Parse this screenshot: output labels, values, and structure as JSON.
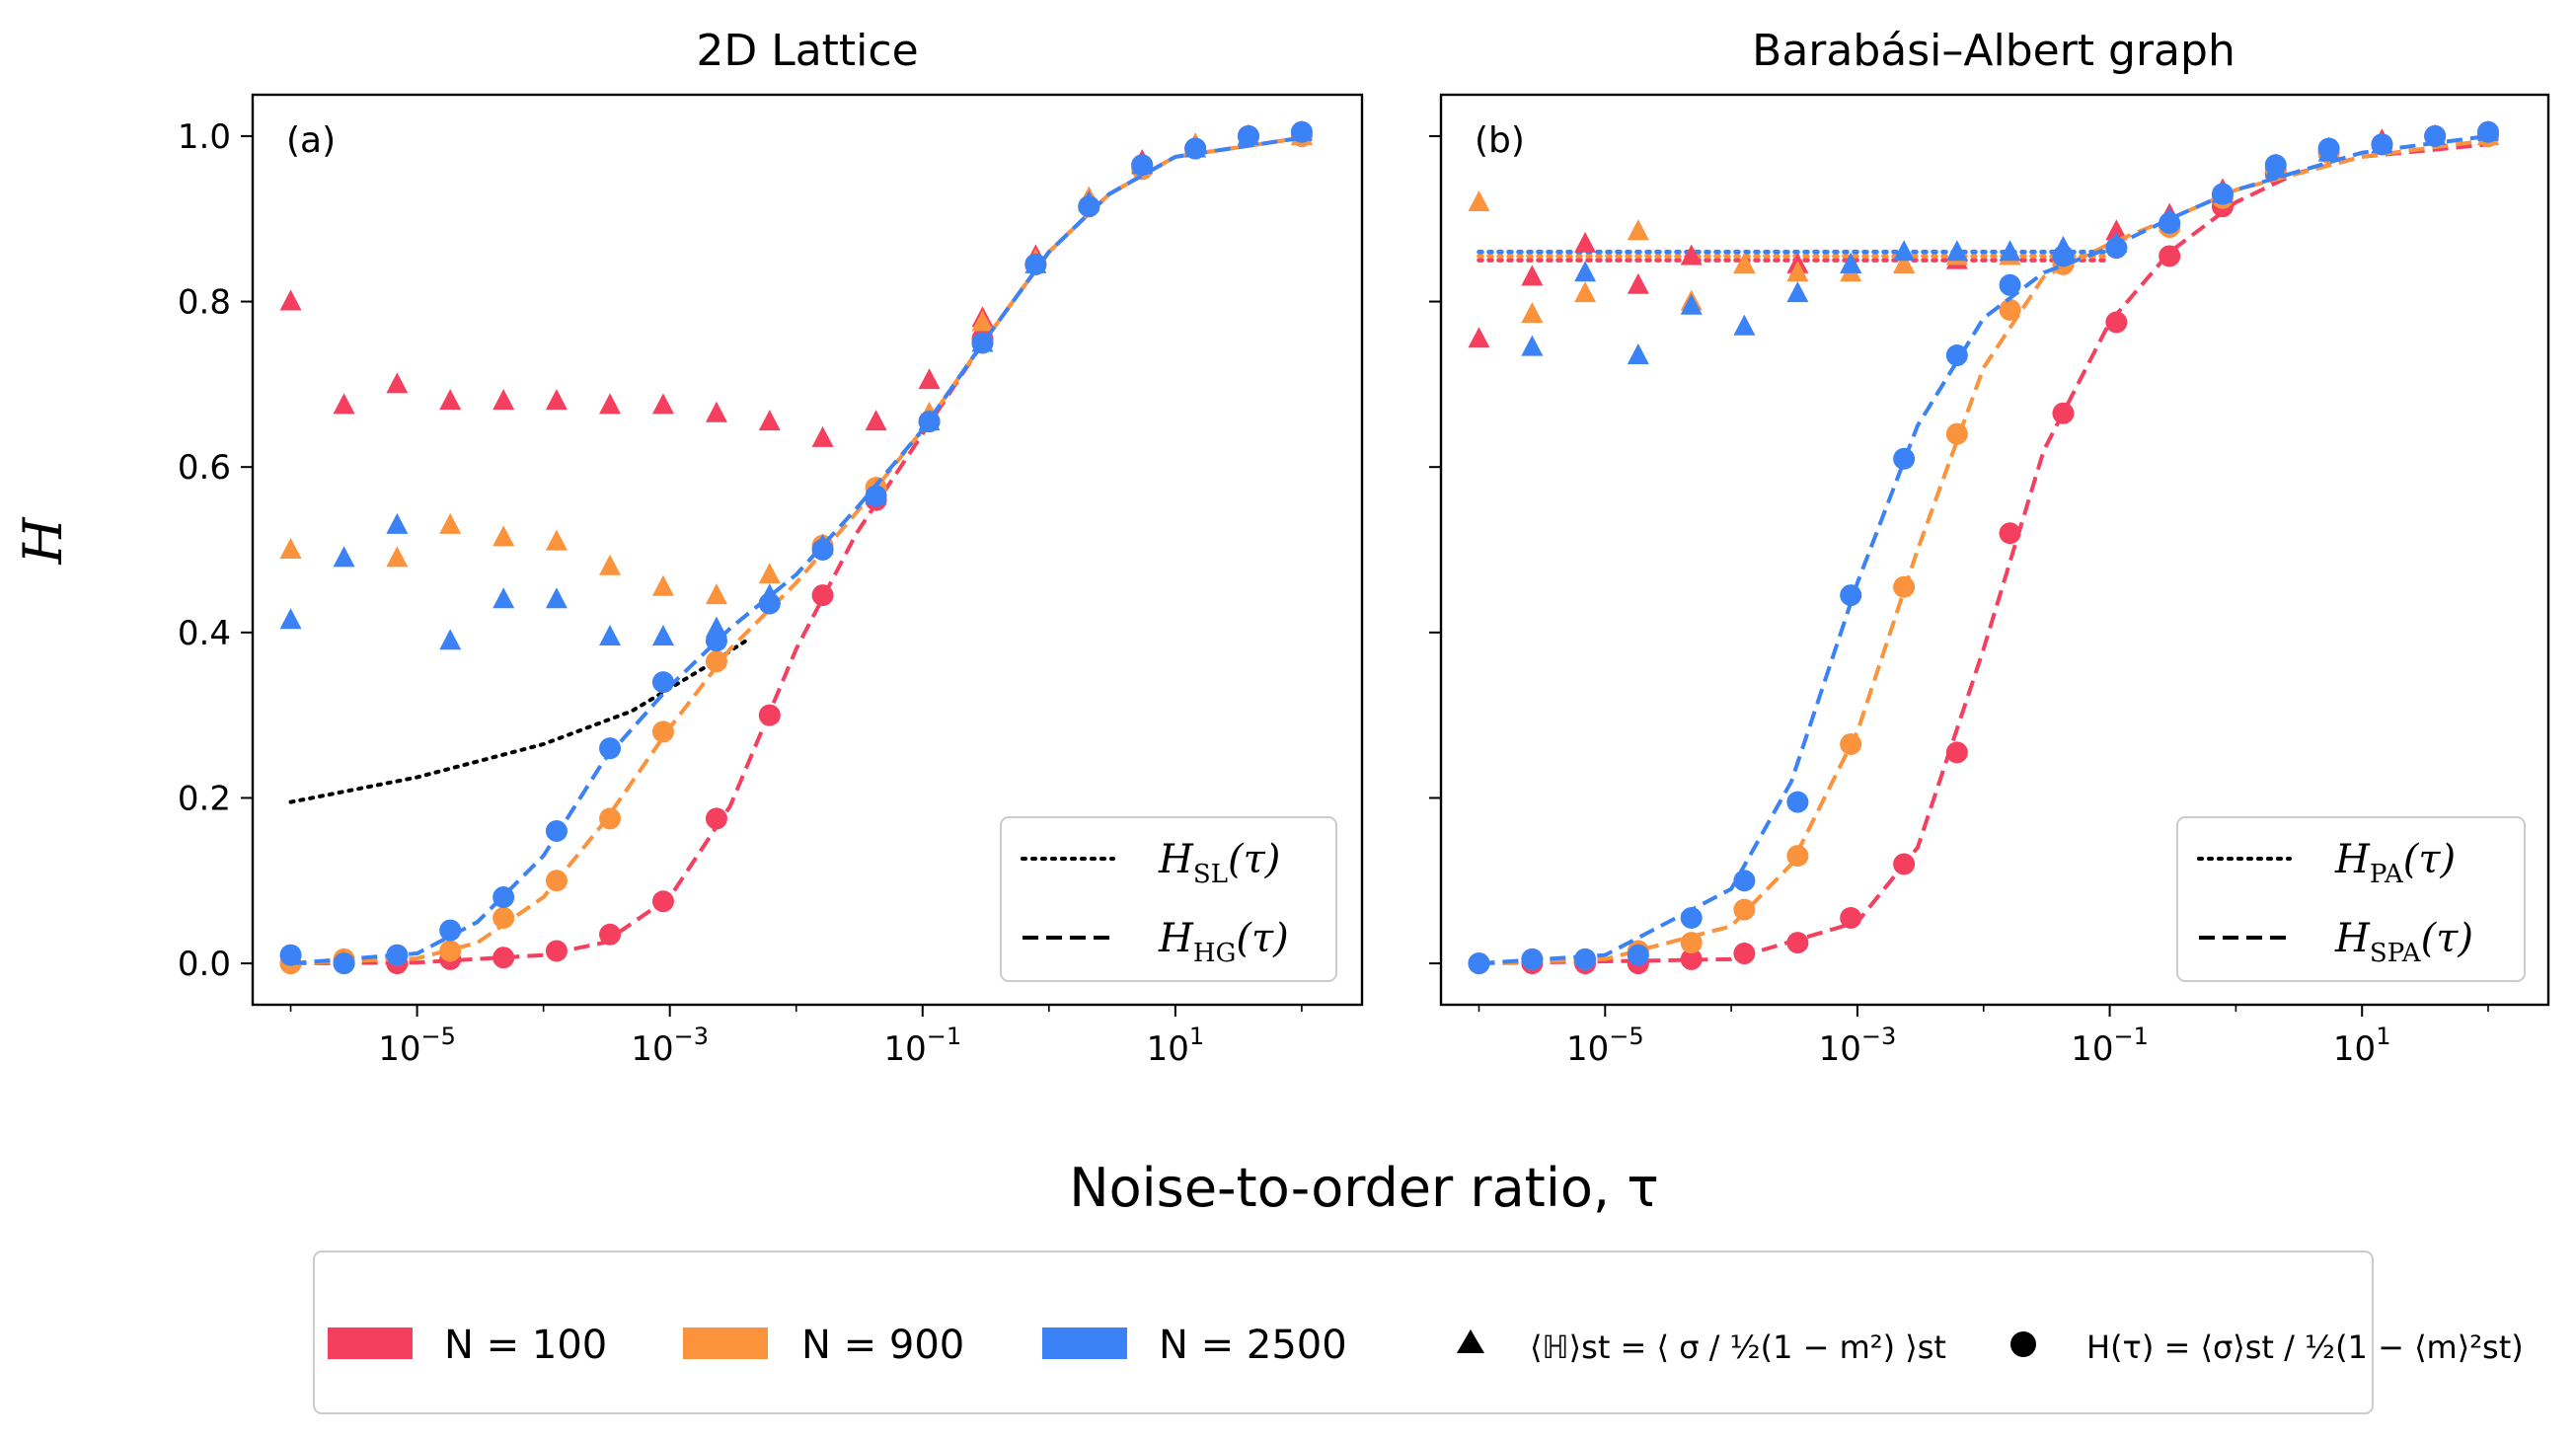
{
  "x_axis_label": "Noise-to-order ratio, τ",
  "colors": {
    "N100": "#f43f5e",
    "N900": "#fb923c",
    "N2500": "#3b82f6",
    "theory": "#000000"
  },
  "chart_data": [
    {
      "type": "scatter",
      "panel_label": "(a)",
      "title": "2D Lattice",
      "xlabel": "Noise-to-order ratio, τ",
      "ylabel": "H",
      "xscale": "log",
      "xlim": [
        5e-07,
        300
      ],
      "ylim": [
        -0.05,
        1.05
      ],
      "xticks": [
        1e-05,
        0.001,
        0.1,
        10
      ],
      "xtick_labels": [
        [
          "10",
          "−5"
        ],
        [
          "10",
          "−3"
        ],
        [
          "10",
          "−1"
        ],
        [
          "10",
          "1"
        ]
      ],
      "yticks": [
        0,
        0.2,
        0.4,
        0.6,
        0.8,
        1.0
      ],
      "ytick_labels": [
        "0.0",
        "0.2",
        "0.4",
        "0.6",
        "0.8",
        "1.0"
      ],
      "x": [
        1e-06,
        2.64e-06,
        6.95e-06,
        1.83e-05,
        4.83e-05,
        0.000127,
        0.000336,
        0.000886,
        0.00234,
        0.00616,
        0.0162,
        0.0428,
        0.113,
        0.298,
        0.785,
        2.07,
        5.46,
        14.4,
        37.9,
        100
      ],
      "series": [
        {
          "name": "N = 100",
          "color_key": "N100",
          "triangles": [
            0.8,
            0.675,
            0.7,
            0.68,
            0.68,
            0.68,
            0.675,
            0.675,
            0.665,
            0.655,
            0.635,
            0.655,
            0.705,
            0.78,
            0.855,
            0.925,
            0.97,
            0.99,
            1.0,
            1.0
          ],
          "circles": [
            0.0,
            0.0,
            0.0,
            0.005,
            0.007,
            0.015,
            0.035,
            0.075,
            0.175,
            0.3,
            0.445,
            0.56,
            0.655,
            0.755,
            0.845,
            0.915,
            0.965,
            0.985,
            1.0,
            1.0
          ],
          "dashed": [
            [
              1e-06,
              0.0
            ],
            [
              1e-05,
              0.001
            ],
            [
              0.0001,
              0.01
            ],
            [
              0.0003,
              0.025
            ],
            [
              0.001,
              0.08
            ],
            [
              0.003,
              0.19
            ],
            [
              0.01,
              0.38
            ],
            [
              0.03,
              0.52
            ],
            [
              0.1,
              0.64
            ],
            [
              0.3,
              0.75
            ],
            [
              1,
              0.86
            ],
            [
              3,
              0.93
            ],
            [
              10,
              0.975
            ],
            [
              100,
              0.998
            ]
          ]
        },
        {
          "name": "N = 900",
          "color_key": "N900",
          "triangles": [
            0.5,
            null,
            0.49,
            0.53,
            0.515,
            0.51,
            0.48,
            0.455,
            0.445,
            0.47,
            0.505,
            0.575,
            0.665,
            0.775,
            0.85,
            0.925,
            0.965,
            0.99,
            1.0,
            1.0
          ],
          "circles": [
            0.0,
            0.005,
            0.01,
            0.015,
            0.055,
            0.1,
            0.175,
            0.28,
            0.365,
            0.435,
            0.505,
            0.575,
            0.655,
            0.75,
            0.845,
            0.915,
            0.96,
            0.985,
            1.0,
            1.0
          ],
          "dashed": [
            [
              1e-06,
              0.0
            ],
            [
              1e-05,
              0.006
            ],
            [
              3e-05,
              0.025
            ],
            [
              0.0001,
              0.08
            ],
            [
              0.0003,
              0.17
            ],
            [
              0.001,
              0.285
            ],
            [
              0.003,
              0.38
            ],
            [
              0.01,
              0.46
            ],
            [
              0.03,
              0.545
            ],
            [
              0.1,
              0.645
            ],
            [
              0.3,
              0.75
            ],
            [
              1,
              0.86
            ],
            [
              3,
              0.93
            ],
            [
              10,
              0.975
            ],
            [
              100,
              0.998
            ]
          ]
        },
        {
          "name": "N = 2500",
          "color_key": "N2500",
          "triangles": [
            0.415,
            0.49,
            0.53,
            0.39,
            0.44,
            0.44,
            0.395,
            0.395,
            0.405,
            0.445,
            0.505,
            0.565,
            0.655,
            0.75,
            0.845,
            0.92,
            0.965,
            0.985,
            1.0,
            1.005
          ],
          "circles": [
            0.01,
            0.0,
            0.01,
            0.04,
            0.08,
            0.16,
            0.26,
            0.34,
            0.39,
            0.435,
            0.5,
            0.565,
            0.655,
            0.75,
            0.845,
            0.915,
            0.965,
            0.985,
            1.0,
            1.005
          ],
          "dashed": [
            [
              1e-06,
              0.0
            ],
            [
              1e-05,
              0.012
            ],
            [
              3e-05,
              0.05
            ],
            [
              0.0001,
              0.13
            ],
            [
              0.0003,
              0.245
            ],
            [
              0.001,
              0.335
            ],
            [
              0.003,
              0.405
            ],
            [
              0.01,
              0.47
            ],
            [
              0.03,
              0.55
            ],
            [
              0.1,
              0.645
            ],
            [
              0.3,
              0.75
            ],
            [
              1,
              0.86
            ],
            [
              3,
              0.93
            ],
            [
              10,
              0.975
            ],
            [
              100,
              0.998
            ]
          ]
        }
      ],
      "theory_dotted": {
        "name": "H_SL(τ)",
        "points": [
          [
            1e-06,
            0.195
          ],
          [
            1e-05,
            0.225
          ],
          [
            0.0001,
            0.265
          ],
          [
            0.0005,
            0.305
          ],
          [
            0.002,
            0.36
          ],
          [
            0.004,
            0.39
          ]
        ]
      },
      "theory_dashed_name": "H_HG(τ)",
      "legend": {
        "placement": "lower-right",
        "dotted_label": [
          "H",
          "SL",
          "(τ)"
        ],
        "dashed_label": [
          "H",
          "HG",
          "(τ)"
        ]
      }
    },
    {
      "type": "scatter",
      "panel_label": "(b)",
      "title": "Barabási–Albert graph",
      "xlabel": "Noise-to-order ratio, τ",
      "xscale": "log",
      "xlim": [
        5e-07,
        300
      ],
      "ylim": [
        -0.05,
        1.05
      ],
      "xticks": [
        1e-05,
        0.001,
        0.1,
        10
      ],
      "xtick_labels": [
        [
          "10",
          "−5"
        ],
        [
          "10",
          "−3"
        ],
        [
          "10",
          "−1"
        ],
        [
          "10",
          "1"
        ]
      ],
      "x": [
        1e-06,
        2.64e-06,
        6.95e-06,
        1.83e-05,
        4.83e-05,
        0.000127,
        0.000336,
        0.000886,
        0.00234,
        0.00616,
        0.0162,
        0.0428,
        0.113,
        0.298,
        0.785,
        2.07,
        5.46,
        14.4,
        37.9,
        100
      ],
      "series": [
        {
          "name": "N = 100",
          "color_key": "N100",
          "triangles": [
            0.755,
            0.83,
            0.87,
            0.82,
            0.855,
            0.845,
            0.845,
            0.845,
            0.845,
            0.85,
            0.855,
            0.865,
            0.885,
            0.905,
            0.935,
            0.965,
            0.985,
            0.995,
            1.0,
            1.0
          ],
          "circles": [
            0.0,
            0.0,
            0.0,
            0.0,
            0.005,
            0.012,
            0.025,
            0.055,
            0.12,
            0.255,
            0.52,
            0.665,
            0.775,
            0.855,
            0.915,
            0.955,
            0.98,
            0.99,
            1.0,
            1.0
          ],
          "dashed": [
            [
              1e-06,
              0.0
            ],
            [
              0.0001,
              0.005
            ],
            [
              0.001,
              0.05
            ],
            [
              0.003,
              0.14
            ],
            [
              0.01,
              0.38
            ],
            [
              0.03,
              0.62
            ],
            [
              0.1,
              0.775
            ],
            [
              0.3,
              0.86
            ],
            [
              1,
              0.92
            ],
            [
              3,
              0.955
            ],
            [
              10,
              0.975
            ],
            [
              100,
              0.99
            ]
          ]
        },
        {
          "name": "N = 900",
          "color_key": "N900",
          "triangles": [
            0.92,
            0.785,
            0.81,
            0.885,
            0.8,
            0.845,
            0.835,
            0.835,
            0.845,
            0.855,
            0.855,
            0.86,
            0.87,
            0.895,
            0.93,
            0.96,
            0.98,
            0.99,
            1.0,
            1.0
          ],
          "circles": [
            0.0,
            0.005,
            0.005,
            0.015,
            0.025,
            0.065,
            0.13,
            0.265,
            0.455,
            0.64,
            0.79,
            0.845,
            0.865,
            0.89,
            0.925,
            0.96,
            0.98,
            0.99,
            1.0,
            1.0
          ],
          "dashed": [
            [
              1e-06,
              0.0
            ],
            [
              1e-05,
              0.005
            ],
            [
              0.0001,
              0.045
            ],
            [
              0.0003,
              0.12
            ],
            [
              0.001,
              0.28
            ],
            [
              0.003,
              0.5
            ],
            [
              0.01,
              0.72
            ],
            [
              0.03,
              0.83
            ],
            [
              0.1,
              0.87
            ],
            [
              0.3,
              0.9
            ],
            [
              1,
              0.935
            ],
            [
              10,
              0.975
            ],
            [
              100,
              0.995
            ]
          ]
        },
        {
          "name": "N = 2500",
          "color_key": "N2500",
          "triangles": [
            null,
            0.745,
            0.835,
            0.735,
            0.795,
            0.77,
            0.81,
            0.845,
            0.86,
            0.86,
            0.86,
            0.865,
            0.87,
            0.9,
            0.93,
            0.96,
            0.98,
            0.99,
            1.0,
            1.005
          ],
          "circles": [
            0.0,
            0.005,
            0.005,
            0.01,
            0.055,
            0.1,
            0.195,
            0.445,
            0.61,
            0.735,
            0.82,
            0.855,
            0.865,
            0.895,
            0.93,
            0.965,
            0.985,
            0.99,
            1.0,
            1.005
          ],
          "dashed": [
            [
              1e-06,
              0.0
            ],
            [
              1e-05,
              0.01
            ],
            [
              0.0001,
              0.09
            ],
            [
              0.0003,
              0.22
            ],
            [
              0.001,
              0.46
            ],
            [
              0.003,
              0.65
            ],
            [
              0.01,
              0.78
            ],
            [
              0.03,
              0.835
            ],
            [
              0.1,
              0.865
            ],
            [
              0.3,
              0.9
            ],
            [
              1,
              0.935
            ],
            [
              10,
              0.98
            ],
            [
              100,
              1.0
            ]
          ]
        }
      ],
      "theory_dotted_values": {
        "N100": 0.85,
        "N900": 0.855,
        "N2500": 0.86,
        "x_range": [
          1e-06,
          0.1
        ]
      },
      "legend": {
        "placement": "lower-right",
        "dotted_label": [
          "H",
          "PA",
          "(τ)"
        ],
        "dashed_label": [
          "H",
          "SPA",
          "(τ)"
        ]
      }
    }
  ],
  "bottom_legend": {
    "n100": "N = 100",
    "n900": "N = 900",
    "n2500": "N = 2500",
    "triangle_formula": "⟨ℍ⟩st = ⟨ σ / ½(1 − m²) ⟩st",
    "circle_formula": "H(τ) = ⟨σ⟩st / ½(1 − ⟨m⟩²st)"
  }
}
